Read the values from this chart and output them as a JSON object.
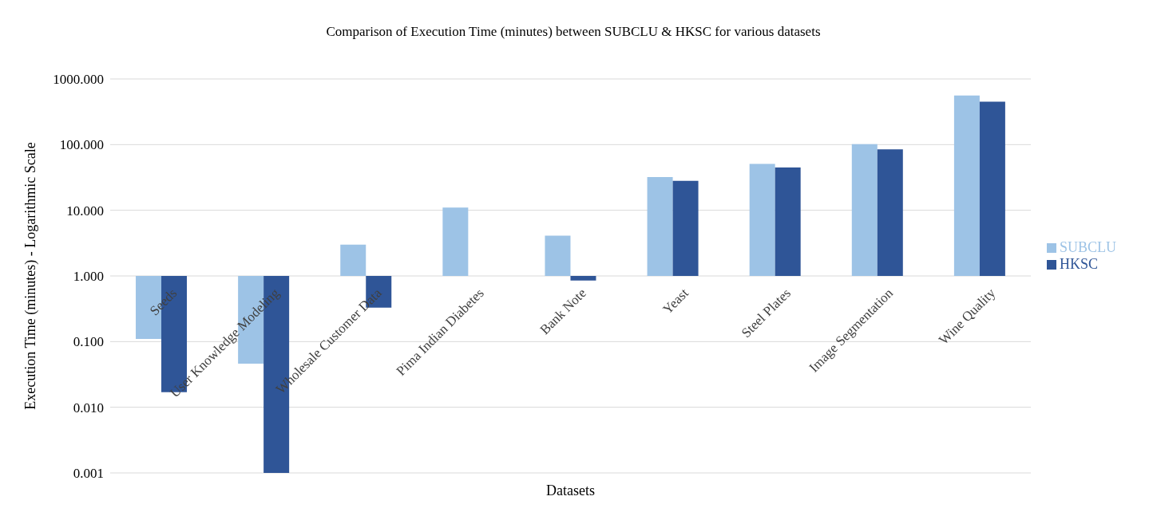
{
  "chart_data": {
    "type": "bar",
    "title": "Comparison of Execution Time (minutes) between SUBCLU & HKSC for various datasets",
    "xlabel": "Datasets",
    "ylabel": "Execution Time (minutes) - Logarithmic Scale",
    "categories": [
      "Seeds",
      "User Knowledge Modeling",
      "Wholesale Customer Data",
      "Pima Indian Diabetes",
      "Bank Note",
      "Yeast",
      "Steel Plates",
      "Image Segmentation",
      "Wine Quality"
    ],
    "series": [
      {
        "name": "SUBCLU",
        "color": "#9dc3e6",
        "base": [
          1,
          1,
          1,
          1,
          1,
          1,
          1,
          1,
          1
        ],
        "values": [
          -0.89,
          -0.954,
          2.0,
          10,
          3.1,
          31,
          50,
          101,
          559
        ]
      },
      {
        "name": "HKSC",
        "color": "#2f5597",
        "base": [
          1,
          1,
          1,
          null,
          1,
          1,
          1,
          1,
          1
        ],
        "values": [
          -0.983,
          -0.999,
          -0.67,
          null,
          -0.15,
          27,
          44,
          84,
          449
        ]
      }
    ],
    "log": "y",
    "ylim": [
      0.001,
      1000
    ],
    "yticks": [
      {
        "value": 0.001,
        "label": "0.001"
      },
      {
        "value": 0.01,
        "label": "0.010"
      },
      {
        "value": 0.1,
        "label": "0.100"
      },
      {
        "value": 1,
        "label": "1.000"
      },
      {
        "value": 10,
        "label": "10.000"
      },
      {
        "value": 100,
        "label": "100.000"
      },
      {
        "value": 1000,
        "label": "1000.000"
      }
    ],
    "grid": "y",
    "legend": "right"
  }
}
